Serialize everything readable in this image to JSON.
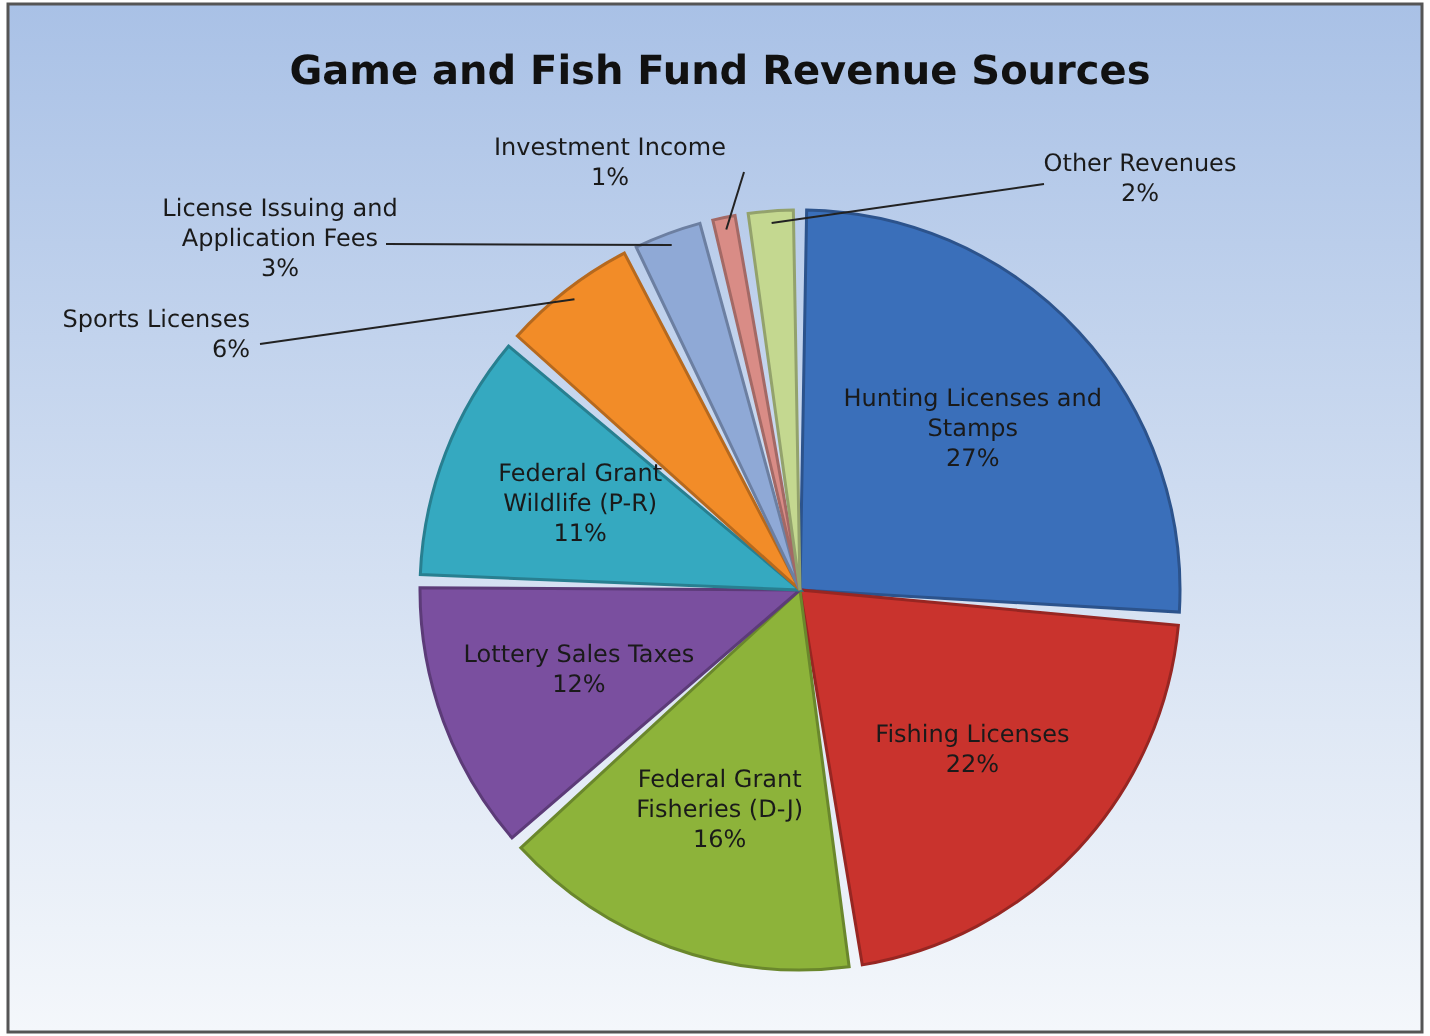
{
  "chart_data": {
    "type": "pie",
    "title": "Game and Fish Fund Revenue Sources",
    "categories": [
      "Hunting Licenses and Stamps",
      "Fishing Licenses",
      "Federal Grant Fisheries (D-J)",
      "Lottery Sales Taxes",
      "Federal Grant Wildlife (P-R)",
      "Sports Licenses",
      "License Issuing and Application Fees",
      "Investment Income",
      "Other Revenues"
    ],
    "values": [
      27,
      22,
      16,
      12,
      11,
      6,
      3,
      1,
      2
    ],
    "value_labels": [
      "27%",
      "22%",
      "16%",
      "12%",
      "11%",
      "6%",
      "3%",
      "1%",
      "2%"
    ],
    "colors": [
      "#3a6fba",
      "#c9332d",
      "#8db33a",
      "#7a4f9f",
      "#35a9c0",
      "#f28c28",
      "#8fa9d6",
      "#d98c86",
      "#c4d890"
    ]
  }
}
